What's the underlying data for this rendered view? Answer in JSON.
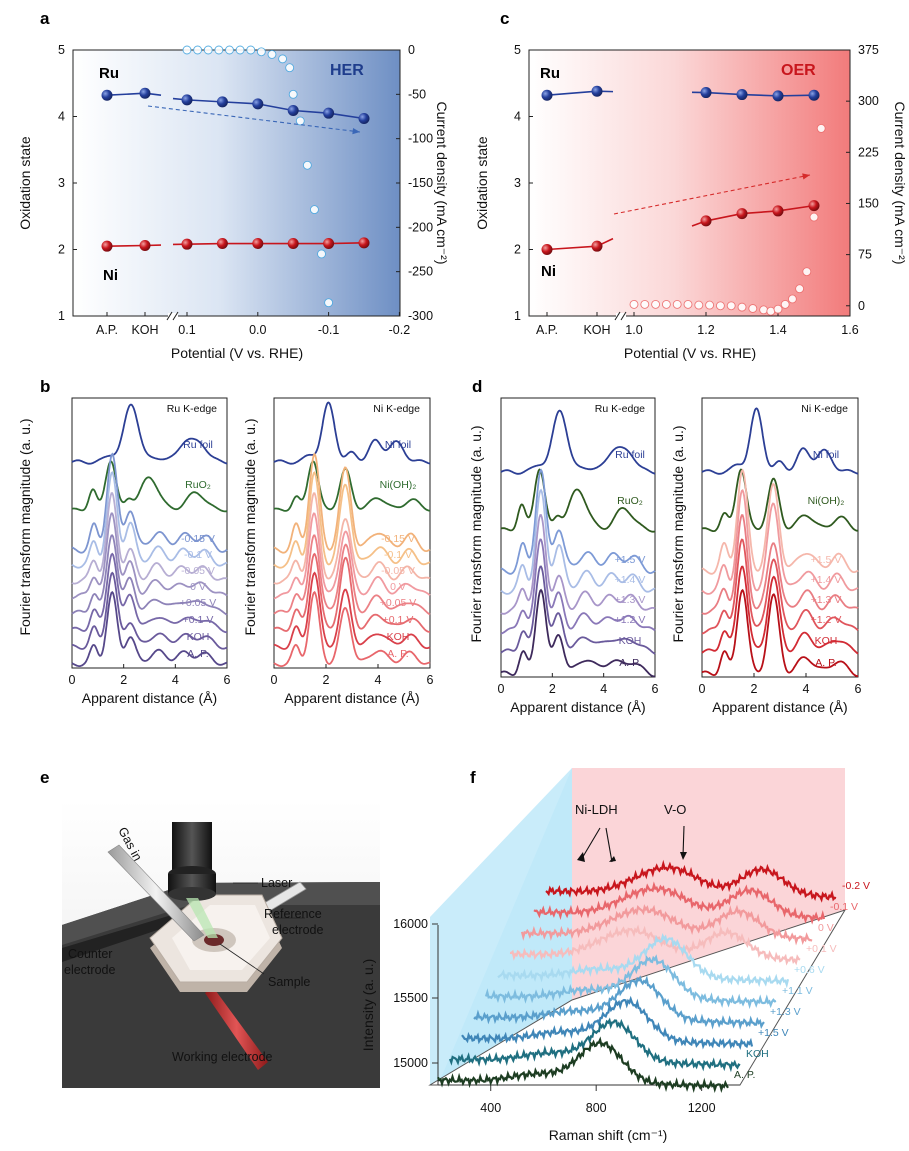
{
  "colors": {
    "ru": "#243f9c",
    "ni": "#c8161d",
    "her_current": "#5bb4e8",
    "oer_current": "#f07a7a",
    "her_bg": "#6e8fc4",
    "oer_bg": "#f27b7b"
  },
  "chart_data": [
    {
      "id": "a",
      "panel_label": "a",
      "type": "line",
      "title": "HER",
      "xlabel": "Potential (V vs. RHE)",
      "ylabel": "Oxidation state",
      "y2label": "Current density (mA cm⁻²)",
      "ylim": [
        1,
        5
      ],
      "y2lim": [
        -300,
        0
      ],
      "x_ticks_categorical": [
        "A.P.",
        "KOH"
      ],
      "x_ticks_numeric": [
        "0.1",
        "0.0",
        "-0.1",
        "-0.2"
      ],
      "x_numeric_range": [
        0.1,
        -0.15
      ],
      "y_ticks": [
        "1",
        "2",
        "3",
        "4",
        "5"
      ],
      "y2_ticks": [
        "0",
        "-50",
        "-100",
        "-150",
        "-200",
        "-250",
        "-300"
      ],
      "series": [
        {
          "name": "Ru",
          "color": "#243f9c",
          "categorical": [
            4.32,
            4.35
          ],
          "x": [
            0.1,
            0.05,
            0.0,
            -0.05,
            -0.1,
            -0.15
          ],
          "y": [
            4.25,
            4.22,
            4.19,
            4.09,
            4.05,
            3.97
          ]
        },
        {
          "name": "Ni",
          "color": "#c8161d",
          "categorical": [
            2.05,
            2.06
          ],
          "x": [
            0.1,
            0.05,
            0.0,
            -0.05,
            -0.1,
            -0.15
          ],
          "y": [
            2.08,
            2.09,
            2.09,
            2.09,
            2.09,
            2.1
          ]
        }
      ],
      "current_density": {
        "x": [
          0.1,
          0.085,
          0.07,
          0.055,
          0.04,
          0.025,
          0.01,
          -0.005,
          -0.02,
          -0.035,
          -0.045,
          -0.05,
          -0.06,
          -0.07,
          -0.08,
          -0.09,
          -0.1
        ],
        "y": [
          0,
          0,
          0,
          0,
          0,
          0,
          0,
          -2,
          -5,
          -10,
          -20,
          -50,
          -80,
          -130,
          -180,
          -230,
          -285
        ]
      },
      "arrow_trend": "down"
    },
    {
      "id": "c",
      "panel_label": "c",
      "type": "line",
      "title": "OER",
      "xlabel": "Potential (V vs. RHE)",
      "ylabel": "Oxidation state",
      "y2label": "Current density (mA cm⁻²)",
      "ylim": [
        1,
        5
      ],
      "y2lim": [
        -15,
        375
      ],
      "x_ticks_categorical": [
        "A.P.",
        "KOH"
      ],
      "x_ticks_numeric": [
        "1.0",
        "1.2",
        "1.4",
        "1.6"
      ],
      "x_numeric_range": [
        1.0,
        1.6
      ],
      "y_ticks": [
        "1",
        "2",
        "3",
        "4",
        "5"
      ],
      "y2_ticks": [
        "0",
        "75",
        "150",
        "225",
        "300",
        "375"
      ],
      "series": [
        {
          "name": "Ru",
          "color": "#243f9c",
          "categorical": [
            4.32,
            4.38
          ],
          "x": [
            1.2,
            1.3,
            1.4,
            1.5
          ],
          "y": [
            4.36,
            4.33,
            4.31,
            4.32
          ]
        },
        {
          "name": "Ni",
          "color": "#c8161d",
          "categorical": [
            2.0,
            2.05
          ],
          "x": [
            1.2,
            1.3,
            1.4,
            1.5
          ],
          "y": [
            2.43,
            2.54,
            2.58,
            2.66
          ]
        }
      ],
      "current_density": {
        "x": [
          1.0,
          1.03,
          1.06,
          1.09,
          1.12,
          1.15,
          1.18,
          1.21,
          1.24,
          1.27,
          1.3,
          1.33,
          1.36,
          1.38,
          1.4,
          1.42,
          1.44,
          1.46,
          1.48,
          1.5,
          1.52
        ],
        "y": [
          2,
          2,
          2,
          2,
          2,
          2,
          1,
          1,
          0,
          0,
          -2,
          -4,
          -6,
          -8,
          -5,
          2,
          10,
          25,
          50,
          130,
          260
        ]
      },
      "arrow_trend": "up"
    },
    {
      "id": "b",
      "panel_label": "b",
      "type": "line",
      "ylabel": "Fourier transform magnitude (a. u.)",
      "subplots": [
        {
          "xlabel": "Apparent distance (Å)",
          "edge_label": "Ru K-edge",
          "xlim": [
            0,
            6
          ],
          "x_ticks": [
            "0",
            "2",
            "4",
            "6"
          ],
          "traces": [
            {
              "label": "Ru foil",
              "color": "#2c3f95",
              "kind": "ru_foil"
            },
            {
              "label": "RuO₂",
              "color": "#2f6b2f",
              "kind": "ruo2"
            },
            {
              "label": "-0.15 V",
              "color": "#7d95d0",
              "kind": "sample"
            },
            {
              "label": "-0.1 V",
              "color": "#a9bde6",
              "kind": "sample"
            },
            {
              "label": "-0.05 V",
              "color": "#b7aed3",
              "kind": "sample"
            },
            {
              "label": "0 V",
              "color": "#9d92c2",
              "kind": "sample"
            },
            {
              "label": "+0.05 V",
              "color": "#8e83b8",
              "kind": "sample"
            },
            {
              "label": "+0.1 V",
              "color": "#7768a8",
              "kind": "sample"
            },
            {
              "label": "KOH",
              "color": "#6a5a9c",
              "kind": "sample"
            },
            {
              "label": "A. P.",
              "color": "#56488a",
              "kind": "sample"
            }
          ]
        },
        {
          "xlabel": "Apparent distance (Å)",
          "edge_label": "Ni K-edge",
          "xlim": [
            0,
            6
          ],
          "x_ticks": [
            "0",
            "2",
            "4",
            "6"
          ],
          "traces": [
            {
              "label": "Ni foil",
              "color": "#2c3f95",
              "kind": "ni_foil"
            },
            {
              "label": "Ni(OH)₂",
              "color": "#2f6b2f",
              "kind": "nioh2"
            },
            {
              "label": "-0.15 V",
              "color": "#f2b27a",
              "kind": "nisample"
            },
            {
              "label": "-0.1 V",
              "color": "#f5c088",
              "kind": "nisample"
            },
            {
              "label": "-0.05 V",
              "color": "#f4b5a8",
              "kind": "nisample"
            },
            {
              "label": "0 V",
              "color": "#f19aa0",
              "kind": "nisample"
            },
            {
              "label": "+0.05 V",
              "color": "#ec8186",
              "kind": "nisample"
            },
            {
              "label": "+0.1 V",
              "color": "#e66a6f",
              "kind": "nisample"
            },
            {
              "label": "KOH",
              "color": "#d9404a",
              "kind": "nisample"
            },
            {
              "label": "A. P.",
              "color": "#e8666b",
              "kind": "nisample"
            }
          ]
        }
      ]
    },
    {
      "id": "d",
      "panel_label": "d",
      "type": "line",
      "ylabel": "Fourier transform magnitude (a. u.)",
      "subplots": [
        {
          "xlabel": "Apparent distance (Å)",
          "edge_label": "Ru K-edge",
          "xlim": [
            0,
            6
          ],
          "x_ticks": [
            "0",
            "2",
            "4",
            "6"
          ],
          "traces": [
            {
              "label": "Ru foil",
              "color": "#2c3f95",
              "kind": "ru_foil"
            },
            {
              "label": "RuO₂",
              "color": "#2f5a1f",
              "kind": "ruo2"
            },
            {
              "label": "+1.5 V",
              "color": "#7d9ad6",
              "kind": "sample"
            },
            {
              "label": "+1.4 V",
              "color": "#a9bde6",
              "kind": "sample"
            },
            {
              "label": "+1.3 V",
              "color": "#a896c9",
              "kind": "sample"
            },
            {
              "label": "+1.2 V",
              "color": "#8a78b8",
              "kind": "sample"
            },
            {
              "label": "KOH",
              "color": "#6a5a9c",
              "kind": "sample"
            },
            {
              "label": "A. P.",
              "color": "#3e2a5c",
              "kind": "sample"
            }
          ]
        },
        {
          "xlabel": "Apparent distance (Å)",
          "edge_label": "Ni K-edge",
          "xlim": [
            0,
            6
          ],
          "x_ticks": [
            "0",
            "2",
            "4",
            "6"
          ],
          "traces": [
            {
              "label": "Ni foil",
              "color": "#2c3f95",
              "kind": "ni_foil"
            },
            {
              "label": "Ni(OH)₂",
              "color": "#2f5a1f",
              "kind": "nioh2"
            },
            {
              "label": "+1.5 V",
              "color": "#f5b7ab",
              "kind": "nisample"
            },
            {
              "label": "+1.4 V",
              "color": "#f09a9e",
              "kind": "nisample"
            },
            {
              "label": "+1.3 V",
              "color": "#e97d83",
              "kind": "nisample"
            },
            {
              "label": "+1.2 V",
              "color": "#e0555c",
              "kind": "nisample"
            },
            {
              "label": "KOH",
              "color": "#d22b34",
              "kind": "nisample"
            },
            {
              "label": "A. P.",
              "color": "#b81018",
              "kind": "nisample"
            }
          ]
        }
      ]
    },
    {
      "id": "f",
      "panel_label": "f",
      "type": "line",
      "xlabel": "Raman shift (cm⁻¹)",
      "ylabel": "Intensity (a. u.)",
      "x_ticks": [
        "400",
        "800",
        "1200"
      ],
      "y_ticks": [
        "15000",
        "15500",
        "16000"
      ],
      "annotations": [
        "Ni-LDH",
        "V-O"
      ],
      "traces": [
        {
          "label": "-0.2 V",
          "color": "#c8161d"
        },
        {
          "label": "-0.1 V",
          "color": "#e8666b"
        },
        {
          "label": "0 V",
          "color": "#f29a9c"
        },
        {
          "label": "+0.1 V",
          "color": "#f6bcbc"
        },
        {
          "label": "+0.6 V",
          "color": "#a8daf0"
        },
        {
          "label": "+1.1 V",
          "color": "#7dbcdf"
        },
        {
          "label": "+1.3 V",
          "color": "#5a9fcc"
        },
        {
          "label": "+1.5 V",
          "color": "#3f86b8"
        },
        {
          "label": "KOH",
          "color": "#1f6f80"
        },
        {
          "label": "A. P.",
          "color": "#1d3d22"
        }
      ]
    }
  ],
  "panel_e": {
    "panel_label": "e",
    "labels": {
      "gas": "Gas in",
      "laser": "Laser",
      "reference": "Reference\nelectrode",
      "counter": "Counter\nelectrode",
      "sample": "Sample",
      "working": "Working electrode"
    }
  }
}
